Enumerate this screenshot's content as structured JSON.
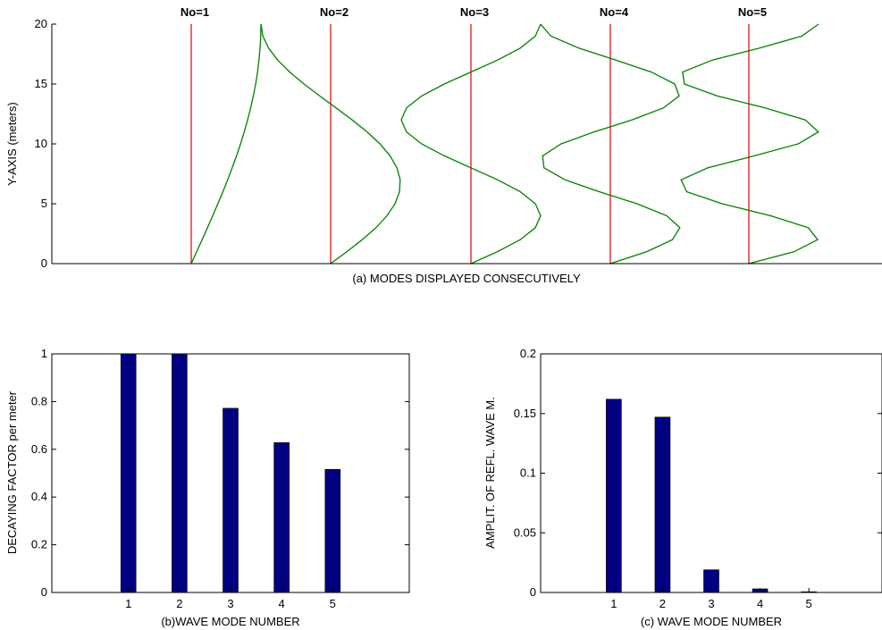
{
  "chart_data": [
    {
      "id": "a",
      "type": "line",
      "xlabel": "(a) MODES DISPLAYED CONSECUTIVELY",
      "ylabel": "Y-AXIS (meters)",
      "ylim": [
        0,
        20
      ],
      "yticks": [
        "0",
        "5",
        "10",
        "15",
        "20"
      ],
      "grid": false,
      "series": [
        {
          "name": "No=1",
          "half_waves": 1
        },
        {
          "name": "No=2",
          "half_waves": 3
        },
        {
          "name": "No=3",
          "half_waves": 5
        },
        {
          "name": "No=4",
          "half_waves": 7
        },
        {
          "name": "No=5",
          "half_waves": 9
        }
      ],
      "colors": {
        "mode_curve": "#008000",
        "baseline": "#e00000"
      }
    },
    {
      "id": "b",
      "type": "bar",
      "categories": [
        "1",
        "2",
        "3",
        "4",
        "5"
      ],
      "values": [
        1.0,
        1.0,
        0.772,
        0.628,
        0.516
      ],
      "xlabel": "(b)WAVE MODE NUMBER",
      "ylabel": "DECAYING FACTOR per meter",
      "ylim": [
        0,
        1
      ],
      "yticks": [
        "0",
        "0.2",
        "0.4",
        "0.6",
        "0.8",
        "1"
      ],
      "grid": false,
      "colors": {
        "bar": "#000080"
      }
    },
    {
      "id": "c",
      "type": "bar",
      "categories": [
        "1",
        "2",
        "3",
        "4",
        "5"
      ],
      "values": [
        0.162,
        0.147,
        0.019,
        0.003,
        0.0006
      ],
      "xlabel": "(c) WAVE MODE NUMBER",
      "ylabel": "AMPLIT. OF REFL. WAVE M.",
      "ylim": [
        0,
        0.2
      ],
      "yticks": [
        "0",
        "0.05",
        "0.1",
        "0.15",
        "0.2"
      ],
      "grid": false,
      "colors": {
        "bar": "#000080"
      }
    }
  ]
}
